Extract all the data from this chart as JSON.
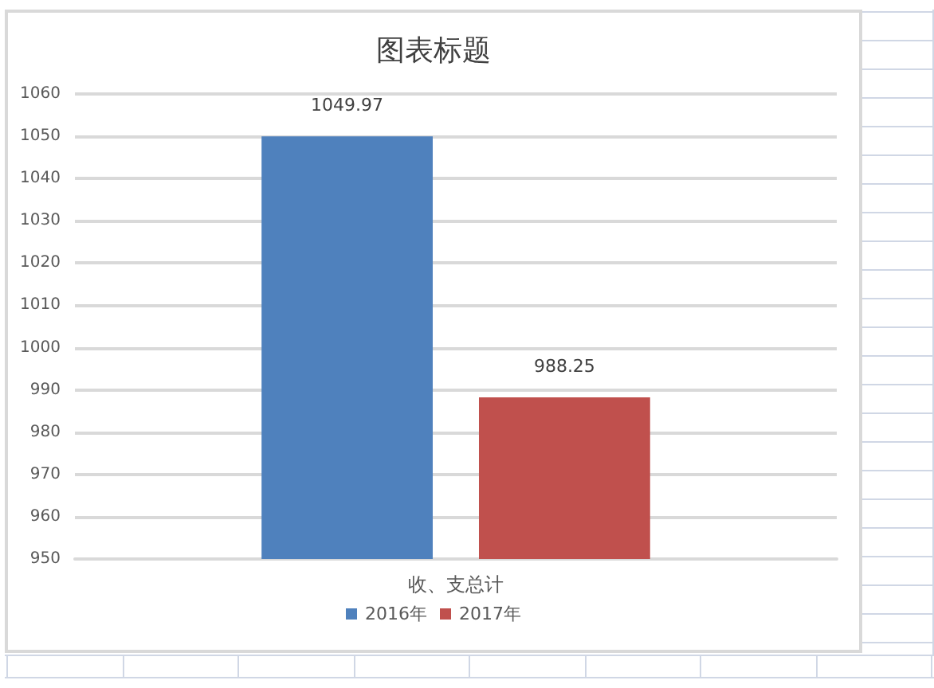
{
  "chart_data": {
    "type": "bar",
    "title": "图表标题",
    "categories": [
      "收、支总计"
    ],
    "series": [
      {
        "name": "2016年",
        "color": "#4f81bd",
        "values": [
          1049.97
        ]
      },
      {
        "name": "2017年",
        "color": "#c0504d",
        "values": [
          988.25
        ]
      }
    ],
    "ylim": [
      950,
      1060
    ],
    "yticks": [
      950,
      960,
      970,
      980,
      990,
      1000,
      1010,
      1020,
      1030,
      1040,
      1050,
      1060
    ],
    "grid": "y",
    "legend": "bottom",
    "data_labels": true
  }
}
